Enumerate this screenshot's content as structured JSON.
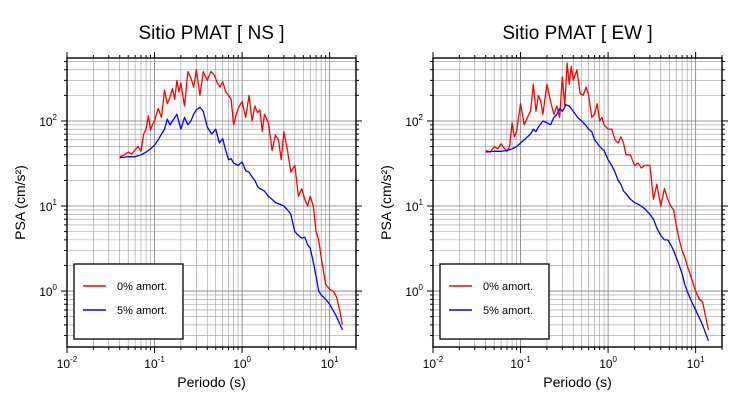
{
  "chart_data": [
    {
      "type": "line",
      "title": "Sitio PMAT [ NS ]",
      "xlabel": "Periodo (s)",
      "ylabel": "PSA (cm/s²)",
      "xscale": "log",
      "yscale": "log",
      "xlim": [
        0.01,
        20
      ],
      "ylim": [
        0.22,
        550
      ],
      "grid": true,
      "legend_position": "bottom-left",
      "x_ticks": [
        {
          "value": 0.01,
          "base": "10",
          "exp": "-2"
        },
        {
          "value": 0.1,
          "base": "10",
          "exp": "-1"
        },
        {
          "value": 1,
          "base": "10",
          "exp": "0"
        },
        {
          "value": 10,
          "base": "10",
          "exp": "1"
        }
      ],
      "y_ticks": [
        {
          "value": 1,
          "base": "10",
          "exp": "0"
        },
        {
          "value": 10,
          "base": "10",
          "exp": "1"
        },
        {
          "value": 100,
          "base": "10",
          "exp": "2"
        }
      ],
      "series": [
        {
          "name": "0% amort.",
          "color": "#ff0000",
          "x": [
            0.04,
            0.045,
            0.05,
            0.055,
            0.06,
            0.065,
            0.07,
            0.075,
            0.08,
            0.085,
            0.09,
            0.095,
            0.1,
            0.11,
            0.12,
            0.13,
            0.14,
            0.15,
            0.16,
            0.17,
            0.18,
            0.19,
            0.2,
            0.21,
            0.22,
            0.24,
            0.26,
            0.28,
            0.3,
            0.33,
            0.36,
            0.4,
            0.44,
            0.48,
            0.52,
            0.56,
            0.6,
            0.65,
            0.7,
            0.75,
            0.8,
            0.85,
            0.9,
            1.0,
            1.1,
            1.2,
            1.3,
            1.4,
            1.5,
            1.6,
            1.7,
            1.8,
            2.0,
            2.2,
            2.4,
            2.6,
            2.8,
            3.0,
            3.3,
            3.6,
            4.0,
            4.4,
            4.8,
            5.2,
            5.6,
            6.0,
            6.5,
            7.0,
            7.5,
            8.0,
            9.0,
            10.0,
            11.0,
            12.0,
            13.0,
            14.0
          ],
          "y": [
            38,
            40,
            43,
            41,
            46,
            50,
            44,
            70,
            80,
            115,
            78,
            92,
            100,
            140,
            110,
            230,
            160,
            190,
            240,
            180,
            300,
            220,
            280,
            200,
            150,
            380,
            320,
            250,
            400,
            200,
            380,
            300,
            380,
            350,
            280,
            250,
            290,
            220,
            200,
            180,
            90,
            115,
            140,
            170,
            110,
            200,
            100,
            150,
            125,
            135,
            75,
            120,
            95,
            45,
            68,
            60,
            35,
            75,
            45,
            25,
            30,
            13,
            16,
            12,
            10,
            13,
            10,
            5,
            4,
            2.5,
            1.2,
            1.05,
            1.0,
            0.85,
            0.6,
            0.4
          ]
        },
        {
          "name": "5% amort.",
          "color": "#0000ff",
          "x": [
            0.04,
            0.05,
            0.06,
            0.07,
            0.08,
            0.09,
            0.1,
            0.11,
            0.12,
            0.13,
            0.14,
            0.15,
            0.16,
            0.18,
            0.2,
            0.22,
            0.24,
            0.26,
            0.28,
            0.3,
            0.33,
            0.36,
            0.4,
            0.45,
            0.5,
            0.55,
            0.6,
            0.65,
            0.7,
            0.75,
            0.8,
            0.9,
            1.0,
            1.1,
            1.2,
            1.3,
            1.4,
            1.5,
            1.6,
            1.8,
            2.0,
            2.2,
            2.4,
            2.7,
            3.0,
            3.3,
            3.6,
            4.0,
            4.4,
            4.8,
            5.2,
            5.6,
            6.0,
            6.5,
            7.0,
            7.5,
            8.0,
            9.0,
            10.0,
            12.0,
            14.0
          ],
          "y": [
            37,
            38,
            38,
            40,
            43,
            47,
            52,
            60,
            70,
            80,
            105,
            90,
            100,
            120,
            80,
            110,
            90,
            100,
            120,
            135,
            145,
            130,
            85,
            70,
            80,
            55,
            62,
            45,
            35,
            36,
            32,
            30,
            33,
            26,
            25,
            22,
            20,
            17,
            16,
            15,
            13,
            12,
            11,
            10.5,
            10,
            9,
            8,
            5,
            4.5,
            4.2,
            4.3,
            3.5,
            3.2,
            2.2,
            1.5,
            1.0,
            0.9,
            0.8,
            0.7,
            0.5,
            0.35
          ]
        }
      ]
    },
    {
      "type": "line",
      "title": "Sitio PMAT [ EW ]",
      "xlabel": "Periodo (s)",
      "ylabel": "PSA (cm/s²)",
      "xscale": "log",
      "yscale": "log",
      "xlim": [
        0.01,
        20
      ],
      "ylim": [
        0.22,
        550
      ],
      "grid": true,
      "legend_position": "bottom-left",
      "x_ticks": [
        {
          "value": 0.01,
          "base": "10",
          "exp": "-2"
        },
        {
          "value": 0.1,
          "base": "10",
          "exp": "-1"
        },
        {
          "value": 1,
          "base": "10",
          "exp": "0"
        },
        {
          "value": 10,
          "base": "10",
          "exp": "1"
        }
      ],
      "y_ticks": [
        {
          "value": 1,
          "base": "10",
          "exp": "0"
        },
        {
          "value": 10,
          "base": "10",
          "exp": "1"
        },
        {
          "value": 100,
          "base": "10",
          "exp": "2"
        }
      ],
      "series": [
        {
          "name": "0% amort.",
          "color": "#ff0000",
          "x": [
            0.04,
            0.045,
            0.05,
            0.055,
            0.06,
            0.065,
            0.07,
            0.075,
            0.08,
            0.085,
            0.09,
            0.1,
            0.11,
            0.12,
            0.13,
            0.14,
            0.15,
            0.16,
            0.17,
            0.18,
            0.2,
            0.22,
            0.24,
            0.26,
            0.28,
            0.3,
            0.32,
            0.34,
            0.36,
            0.38,
            0.4,
            0.44,
            0.48,
            0.52,
            0.56,
            0.6,
            0.65,
            0.7,
            0.75,
            0.8,
            0.85,
            0.9,
            1.0,
            1.1,
            1.2,
            1.3,
            1.4,
            1.5,
            1.6,
            1.8,
            2.0,
            2.2,
            2.4,
            2.6,
            2.8,
            3.0,
            3.3,
            3.6,
            4.0,
            4.4,
            4.8,
            5.2,
            5.6,
            6.0,
            6.5,
            7.0,
            7.5,
            8.0,
            9.0,
            10.0,
            11.0,
            12.0,
            13.0,
            14.0
          ],
          "y": [
            45,
            43,
            50,
            47,
            54,
            48,
            44,
            50,
            95,
            65,
            75,
            160,
            90,
            110,
            130,
            270,
            130,
            200,
            170,
            120,
            270,
            170,
            120,
            150,
            110,
            330,
            150,
            480,
            270,
            440,
            300,
            400,
            210,
            200,
            250,
            200,
            110,
            120,
            160,
            100,
            110,
            90,
            80,
            80,
            60,
            55,
            65,
            55,
            40,
            40,
            30,
            32,
            28,
            30,
            30,
            30,
            12,
            18,
            10,
            16,
            12,
            10,
            9,
            6,
            4,
            3,
            2.5,
            2,
            1.4,
            1.0,
            0.8,
            0.75,
            0.5,
            0.35
          ]
        },
        {
          "name": "5% amort.",
          "color": "#0000ff",
          "x": [
            0.04,
            0.05,
            0.06,
            0.07,
            0.08,
            0.09,
            0.1,
            0.11,
            0.12,
            0.13,
            0.14,
            0.15,
            0.16,
            0.18,
            0.2,
            0.22,
            0.24,
            0.26,
            0.28,
            0.3,
            0.33,
            0.36,
            0.4,
            0.45,
            0.5,
            0.55,
            0.6,
            0.65,
            0.7,
            0.75,
            0.8,
            0.9,
            1.0,
            1.1,
            1.2,
            1.3,
            1.4,
            1.5,
            1.6,
            1.8,
            2.0,
            2.2,
            2.4,
            2.7,
            3.0,
            3.3,
            3.6,
            4.0,
            4.4,
            4.8,
            5.2,
            5.6,
            6.0,
            6.5,
            7.0,
            7.5,
            8.0,
            9.0,
            10.0,
            12.0,
            14.0
          ],
          "y": [
            43,
            44,
            44,
            45,
            47,
            50,
            55,
            60,
            65,
            70,
            80,
            75,
            85,
            100,
            95,
            90,
            110,
            120,
            140,
            130,
            155,
            150,
            130,
            110,
            100,
            90,
            80,
            75,
            60,
            55,
            50,
            45,
            35,
            30,
            25,
            20,
            18,
            15,
            14,
            12,
            11,
            10.5,
            10,
            9,
            8,
            7,
            5.5,
            4.5,
            4,
            4,
            3.5,
            3,
            2.5,
            2,
            1.6,
            1.2,
            1.0,
            0.75,
            0.6,
            0.4,
            0.26
          ]
        }
      ]
    }
  ]
}
